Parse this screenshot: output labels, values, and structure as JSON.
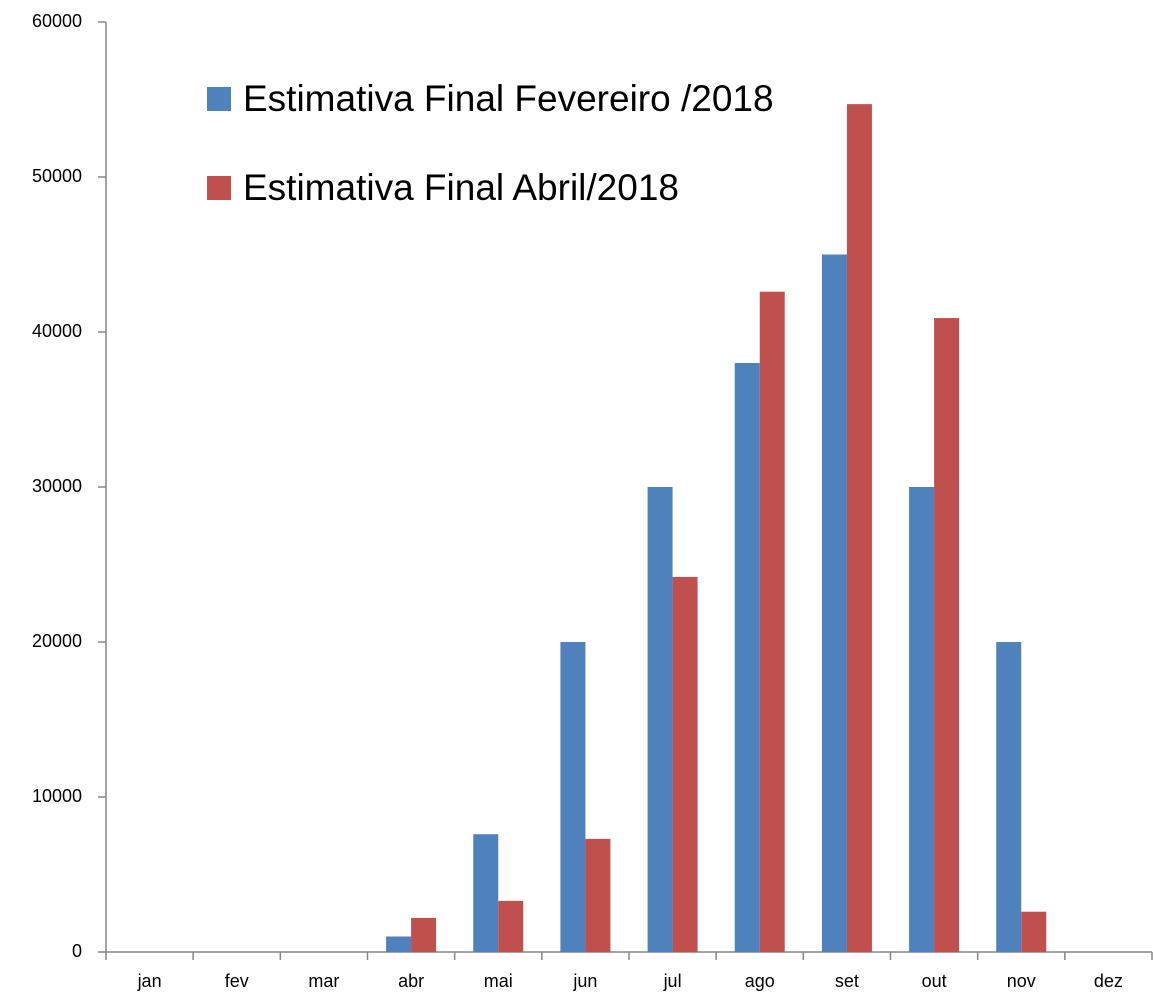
{
  "chart_data": {
    "type": "bar",
    "categories": [
      "jan",
      "fev",
      "mar",
      "abr",
      "mai",
      "jun",
      "jul",
      "ago",
      "set",
      "out",
      "nov",
      "dez"
    ],
    "series": [
      {
        "name": "Estimativa Final Fevereiro /2018",
        "color": "#4f81bd",
        "values": [
          0,
          0,
          0,
          1000,
          7600,
          20000,
          30000,
          38000,
          45000,
          30000,
          20000,
          0
        ]
      },
      {
        "name": "Estimativa Final Abril/2018",
        "color": "#c0504d",
        "values": [
          0,
          0,
          0,
          2200,
          3300,
          7300,
          24200,
          42600,
          54700,
          40900,
          2600,
          0
        ]
      }
    ],
    "ylim": [
      0,
      60000
    ],
    "yticks": [
      0,
      10000,
      20000,
      30000,
      40000,
      50000,
      60000
    ],
    "grid": false,
    "legend": "top-left"
  }
}
